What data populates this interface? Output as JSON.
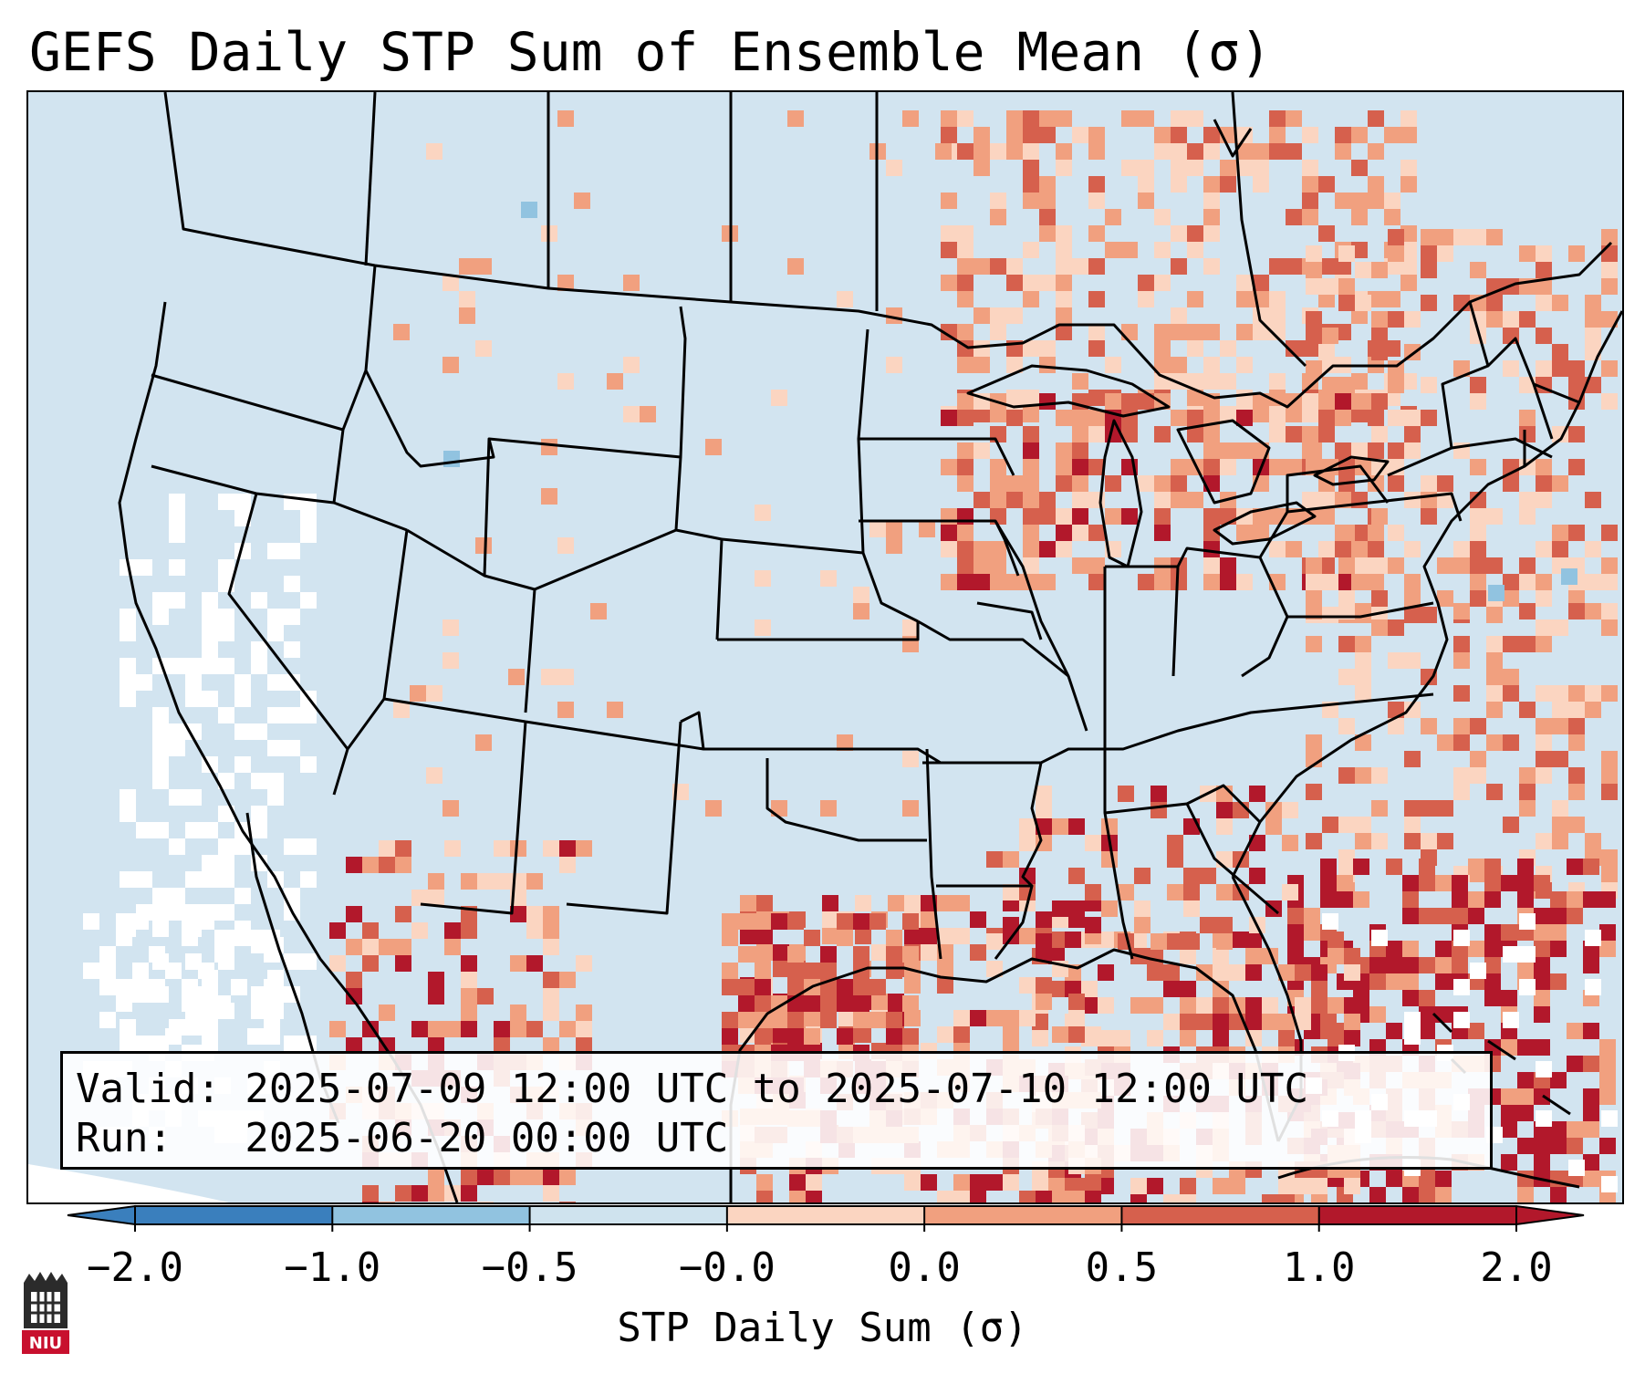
{
  "title": "GEFS Daily STP Sum of Ensemble Mean (σ)",
  "info": {
    "valid_line": "Valid: 2025-07-09 12:00 UTC to 2025-07-10 12:00 UTC",
    "run_line": "Run:   2025-06-20 00:00 UTC"
  },
  "colorbar": {
    "label": "STP Daily Sum (σ)",
    "ticks": [
      "−2.0",
      "−1.0",
      "−0.5",
      "−0.0",
      "0.0",
      "0.5",
      "1.0",
      "2.0"
    ],
    "colors": [
      "#3a7fbd",
      "#91c3e0",
      "#cfe3ee",
      "#f7f7f7",
      "#fbd5c1",
      "#f1a07f",
      "#d6604d",
      "#b2182b"
    ]
  },
  "logo": {
    "text": "NIU",
    "color": "#c8102e"
  },
  "map": {
    "background_color": "#d2e4f0",
    "field_colors": {
      "white": "#ffffff",
      "light": "#fbd5c1",
      "mid": "#f1a07f",
      "strong": "#d6604d",
      "extreme": "#b2182b",
      "neg": "#91c3e0"
    }
  }
}
